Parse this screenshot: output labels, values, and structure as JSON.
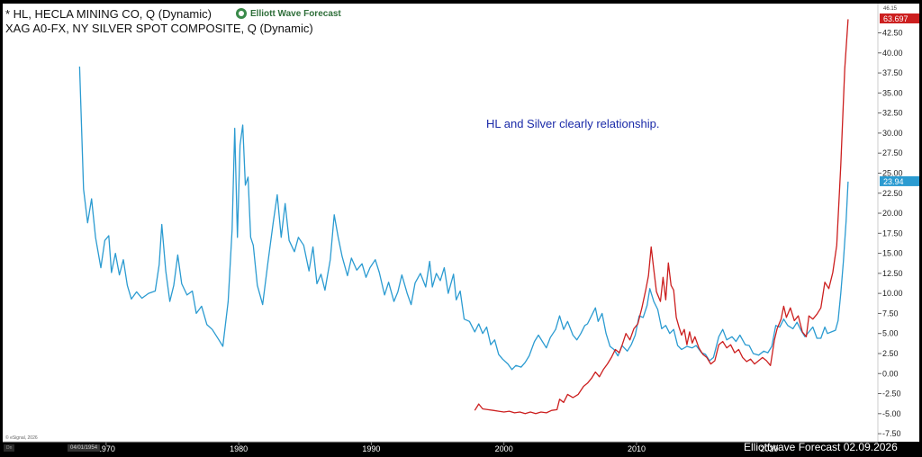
{
  "legend": {
    "hl": "* HL, HECLA MINING CO, Q (Dynamic)",
    "xag": "XAG A0-FX, NY SILVER SPOT COMPOSITE, Q (Dynamic)"
  },
  "brand": {
    "name": "Elliott Wave Forecast"
  },
  "annotation": "HL and Silver clearly relationship.",
  "footer": "Elliottwave Forecast  02.09.2026",
  "copyright": "© eSignal, 2026",
  "date_box": "04/01/1954",
  "dn_box": "Dn",
  "colors": {
    "hl": "#cc1f1f",
    "xag": "#2b9bd1",
    "background": "#ffffff",
    "frame": "#000000"
  },
  "chart_data": {
    "type": "line",
    "xlabel": "",
    "ylabel": "",
    "x_ticks": [
      "1970",
      "1980",
      "1990",
      "2000",
      "2010",
      "2020"
    ],
    "y_ticks": [
      "42.50",
      "40.00",
      "37.50",
      "35.00",
      "32.50",
      "30.00",
      "27.50",
      "25.00",
      "22.50",
      "20.00",
      "17.50",
      "15.00",
      "12.50",
      "10.00",
      "7.50",
      "5.00",
      "2.50",
      "0.00",
      "-2.50",
      "-5.00",
      "-7.50"
    ],
    "ylim": [
      -8.5,
      46.15
    ],
    "xlim": [
      1962.2,
      2028.2
    ],
    "top_tick_label": "46.15",
    "grid": false,
    "series": [
      {
        "name": "XAG A0-FX, NY SILVER SPOT COMPOSITE",
        "color": "#2b9bd1",
        "last_value_label": "23.94",
        "points": [
          [
            1968.0,
            38.3
          ],
          [
            1968.3,
            23.0
          ],
          [
            1968.6,
            18.8
          ],
          [
            1968.9,
            21.8
          ],
          [
            1969.2,
            17.0
          ],
          [
            1969.6,
            13.2
          ],
          [
            1969.9,
            16.6
          ],
          [
            1970.2,
            17.2
          ],
          [
            1970.4,
            12.6
          ],
          [
            1970.7,
            15.0
          ],
          [
            1971.0,
            12.3
          ],
          [
            1971.3,
            14.2
          ],
          [
            1971.6,
            11.0
          ],
          [
            1971.9,
            9.3
          ],
          [
            1972.3,
            10.2
          ],
          [
            1972.7,
            9.4
          ],
          [
            1973.2,
            10.0
          ],
          [
            1973.7,
            10.3
          ],
          [
            1974.0,
            13.6
          ],
          [
            1974.2,
            18.6
          ],
          [
            1974.5,
            12.8
          ],
          [
            1974.8,
            9.0
          ],
          [
            1975.1,
            11.0
          ],
          [
            1975.4,
            14.8
          ],
          [
            1975.7,
            11.2
          ],
          [
            1976.1,
            9.8
          ],
          [
            1976.5,
            10.3
          ],
          [
            1976.8,
            7.5
          ],
          [
            1977.2,
            8.4
          ],
          [
            1977.6,
            6.1
          ],
          [
            1978.0,
            5.5
          ],
          [
            1978.5,
            4.2
          ],
          [
            1978.8,
            3.4
          ],
          [
            1979.2,
            9.0
          ],
          [
            1979.5,
            18.0
          ],
          [
            1979.7,
            30.6
          ],
          [
            1979.9,
            17.0
          ],
          [
            1980.1,
            28.5
          ],
          [
            1980.3,
            31.0
          ],
          [
            1980.5,
            23.5
          ],
          [
            1980.7,
            24.5
          ],
          [
            1980.9,
            17.0
          ],
          [
            1981.1,
            16.0
          ],
          [
            1981.4,
            11.0
          ],
          [
            1981.8,
            8.6
          ],
          [
            1982.2,
            13.8
          ],
          [
            1982.6,
            18.8
          ],
          [
            1982.9,
            22.3
          ],
          [
            1983.2,
            17.0
          ],
          [
            1983.5,
            21.2
          ],
          [
            1983.8,
            16.6
          ],
          [
            1984.2,
            15.2
          ],
          [
            1984.5,
            17.0
          ],
          [
            1984.9,
            16.0
          ],
          [
            1985.3,
            12.8
          ],
          [
            1985.6,
            15.8
          ],
          [
            1985.9,
            11.2
          ],
          [
            1986.2,
            12.4
          ],
          [
            1986.5,
            10.4
          ],
          [
            1986.9,
            14.2
          ],
          [
            1987.2,
            19.8
          ],
          [
            1987.5,
            17.0
          ],
          [
            1987.8,
            14.6
          ],
          [
            1988.2,
            12.2
          ],
          [
            1988.5,
            14.4
          ],
          [
            1988.9,
            12.9
          ],
          [
            1989.3,
            13.7
          ],
          [
            1989.6,
            12.0
          ],
          [
            1989.9,
            13.2
          ],
          [
            1990.3,
            14.2
          ],
          [
            1990.6,
            12.6
          ],
          [
            1991.0,
            9.8
          ],
          [
            1991.3,
            11.4
          ],
          [
            1991.7,
            9.0
          ],
          [
            1992.0,
            10.2
          ],
          [
            1992.3,
            12.3
          ],
          [
            1992.7,
            10.0
          ],
          [
            1993.0,
            8.6
          ],
          [
            1993.3,
            11.3
          ],
          [
            1993.7,
            12.5
          ],
          [
            1994.1,
            10.8
          ],
          [
            1994.4,
            14.0
          ],
          [
            1994.6,
            10.8
          ],
          [
            1994.9,
            12.5
          ],
          [
            1995.2,
            11.6
          ],
          [
            1995.5,
            13.2
          ],
          [
            1995.8,
            10.0
          ],
          [
            1996.2,
            12.4
          ],
          [
            1996.4,
            9.2
          ],
          [
            1996.7,
            10.3
          ],
          [
            1997.0,
            6.8
          ],
          [
            1997.4,
            6.5
          ],
          [
            1997.8,
            5.2
          ],
          [
            1998.1,
            6.2
          ],
          [
            1998.4,
            5.0
          ],
          [
            1998.7,
            5.8
          ],
          [
            1999.0,
            3.6
          ],
          [
            1999.3,
            4.2
          ],
          [
            1999.6,
            2.4
          ],
          [
            1999.9,
            1.8
          ],
          [
            2000.3,
            1.2
          ],
          [
            2000.6,
            0.5
          ],
          [
            2000.9,
            1.0
          ],
          [
            2001.3,
            0.8
          ],
          [
            2001.6,
            1.4
          ],
          [
            2001.9,
            2.2
          ],
          [
            2002.3,
            4.0
          ],
          [
            2002.6,
            4.8
          ],
          [
            2002.9,
            4.0
          ],
          [
            2003.2,
            3.2
          ],
          [
            2003.5,
            4.5
          ],
          [
            2003.9,
            5.5
          ],
          [
            2004.2,
            7.2
          ],
          [
            2004.5,
            5.5
          ],
          [
            2004.8,
            6.5
          ],
          [
            2005.2,
            4.8
          ],
          [
            2005.5,
            4.2
          ],
          [
            2005.8,
            5.0
          ],
          [
            2006.1,
            6.0
          ],
          [
            2006.3,
            6.2
          ],
          [
            2006.6,
            7.2
          ],
          [
            2006.9,
            8.2
          ],
          [
            2007.1,
            6.5
          ],
          [
            2007.4,
            7.5
          ],
          [
            2007.7,
            5.0
          ],
          [
            2008.0,
            3.4
          ],
          [
            2008.3,
            3.0
          ],
          [
            2008.6,
            2.2
          ],
          [
            2008.9,
            3.5
          ],
          [
            2009.3,
            2.8
          ],
          [
            2009.6,
            3.6
          ],
          [
            2009.9,
            4.8
          ],
          [
            2010.2,
            7.2
          ],
          [
            2010.5,
            7.0
          ],
          [
            2010.8,
            8.5
          ],
          [
            2011.0,
            10.6
          ],
          [
            2011.3,
            9.0
          ],
          [
            2011.6,
            8.0
          ],
          [
            2011.9,
            5.6
          ],
          [
            2012.2,
            6.0
          ],
          [
            2012.5,
            5.0
          ],
          [
            2012.8,
            5.5
          ],
          [
            2013.1,
            3.5
          ],
          [
            2013.4,
            3.0
          ],
          [
            2013.8,
            3.4
          ],
          [
            2014.2,
            3.2
          ],
          [
            2014.5,
            3.5
          ],
          [
            2014.9,
            2.6
          ],
          [
            2015.2,
            2.4
          ],
          [
            2015.5,
            1.6
          ],
          [
            2015.8,
            2.0
          ],
          [
            2016.2,
            4.6
          ],
          [
            2016.5,
            5.5
          ],
          [
            2016.8,
            4.2
          ],
          [
            2017.2,
            4.6
          ],
          [
            2017.5,
            4.0
          ],
          [
            2017.8,
            4.8
          ],
          [
            2018.2,
            3.6
          ],
          [
            2018.5,
            3.5
          ],
          [
            2018.8,
            2.5
          ],
          [
            2019.2,
            2.3
          ],
          [
            2019.6,
            2.8
          ],
          [
            2019.9,
            2.6
          ],
          [
            2020.2,
            3.4
          ],
          [
            2020.5,
            6.0
          ],
          [
            2020.8,
            5.8
          ],
          [
            2021.1,
            6.8
          ],
          [
            2021.4,
            6.0
          ],
          [
            2021.8,
            5.6
          ],
          [
            2022.1,
            6.4
          ],
          [
            2022.4,
            5.4
          ],
          [
            2022.7,
            4.6
          ],
          [
            2023.0,
            5.2
          ],
          [
            2023.3,
            5.8
          ],
          [
            2023.6,
            4.4
          ],
          [
            2023.9,
            4.4
          ],
          [
            2024.2,
            5.8
          ],
          [
            2024.4,
            5.0
          ],
          [
            2024.7,
            5.2
          ],
          [
            2025.0,
            5.4
          ],
          [
            2025.2,
            6.6
          ],
          [
            2025.4,
            10.0
          ],
          [
            2025.6,
            14.0
          ],
          [
            2025.8,
            19.0
          ],
          [
            2025.95,
            23.94
          ]
        ]
      },
      {
        "name": "HL, HECLA MINING CO",
        "color": "#cc1f1f",
        "last_value_label": "63.697",
        "points": [
          [
            1997.8,
            -4.6
          ],
          [
            1998.1,
            -3.8
          ],
          [
            1998.4,
            -4.4
          ],
          [
            1998.8,
            -4.5
          ],
          [
            1999.2,
            -4.6
          ],
          [
            1999.6,
            -4.7
          ],
          [
            2000.0,
            -4.8
          ],
          [
            2000.4,
            -4.7
          ],
          [
            2000.8,
            -4.9
          ],
          [
            2001.2,
            -4.8
          ],
          [
            2001.6,
            -5.0
          ],
          [
            2002.0,
            -4.8
          ],
          [
            2002.4,
            -5.0
          ],
          [
            2002.8,
            -4.8
          ],
          [
            2003.2,
            -4.9
          ],
          [
            2003.6,
            -4.6
          ],
          [
            2004.0,
            -4.5
          ],
          [
            2004.2,
            -3.2
          ],
          [
            2004.5,
            -3.6
          ],
          [
            2004.8,
            -2.6
          ],
          [
            2005.2,
            -3.0
          ],
          [
            2005.6,
            -2.6
          ],
          [
            2006.0,
            -1.6
          ],
          [
            2006.3,
            -1.2
          ],
          [
            2006.6,
            -0.6
          ],
          [
            2006.9,
            0.2
          ],
          [
            2007.2,
            -0.4
          ],
          [
            2007.5,
            0.5
          ],
          [
            2007.8,
            1.2
          ],
          [
            2008.1,
            2.0
          ],
          [
            2008.4,
            3.0
          ],
          [
            2008.7,
            2.6
          ],
          [
            2008.9,
            3.5
          ],
          [
            2009.2,
            5.0
          ],
          [
            2009.5,
            4.2
          ],
          [
            2009.8,
            5.6
          ],
          [
            2010.1,
            6.2
          ],
          [
            2010.4,
            8.2
          ],
          [
            2010.7,
            10.5
          ],
          [
            2010.9,
            12.2
          ],
          [
            2011.1,
            15.8
          ],
          [
            2011.3,
            13.0
          ],
          [
            2011.5,
            10.2
          ],
          [
            2011.8,
            9.0
          ],
          [
            2012.0,
            12.0
          ],
          [
            2012.2,
            9.2
          ],
          [
            2012.4,
            13.8
          ],
          [
            2012.6,
            11.0
          ],
          [
            2012.8,
            10.4
          ],
          [
            2013.0,
            7.0
          ],
          [
            2013.2,
            5.8
          ],
          [
            2013.4,
            4.8
          ],
          [
            2013.6,
            5.5
          ],
          [
            2013.8,
            3.6
          ],
          [
            2014.0,
            5.2
          ],
          [
            2014.2,
            3.8
          ],
          [
            2014.4,
            4.6
          ],
          [
            2014.7,
            3.2
          ],
          [
            2015.0,
            2.4
          ],
          [
            2015.3,
            2.0
          ],
          [
            2015.6,
            1.2
          ],
          [
            2015.9,
            1.6
          ],
          [
            2016.2,
            3.6
          ],
          [
            2016.5,
            4.0
          ],
          [
            2016.8,
            3.2
          ],
          [
            2017.1,
            3.6
          ],
          [
            2017.4,
            2.6
          ],
          [
            2017.7,
            3.0
          ],
          [
            2018.0,
            2.0
          ],
          [
            2018.3,
            1.5
          ],
          [
            2018.6,
            1.8
          ],
          [
            2018.9,
            1.2
          ],
          [
            2019.2,
            1.6
          ],
          [
            2019.5,
            2.0
          ],
          [
            2019.8,
            1.6
          ],
          [
            2020.1,
            1.0
          ],
          [
            2020.4,
            4.2
          ],
          [
            2020.6,
            5.6
          ],
          [
            2020.9,
            6.8
          ],
          [
            2021.1,
            8.4
          ],
          [
            2021.3,
            7.0
          ],
          [
            2021.6,
            8.2
          ],
          [
            2021.9,
            6.6
          ],
          [
            2022.2,
            7.2
          ],
          [
            2022.5,
            5.2
          ],
          [
            2022.8,
            4.6
          ],
          [
            2023.0,
            7.2
          ],
          [
            2023.3,
            6.8
          ],
          [
            2023.6,
            7.4
          ],
          [
            2023.9,
            8.2
          ],
          [
            2024.2,
            11.4
          ],
          [
            2024.5,
            10.6
          ],
          [
            2024.8,
            12.6
          ],
          [
            2025.1,
            16.0
          ],
          [
            2025.4,
            26.0
          ],
          [
            2025.7,
            38.0
          ],
          [
            2025.95,
            44.2
          ]
        ]
      }
    ]
  }
}
